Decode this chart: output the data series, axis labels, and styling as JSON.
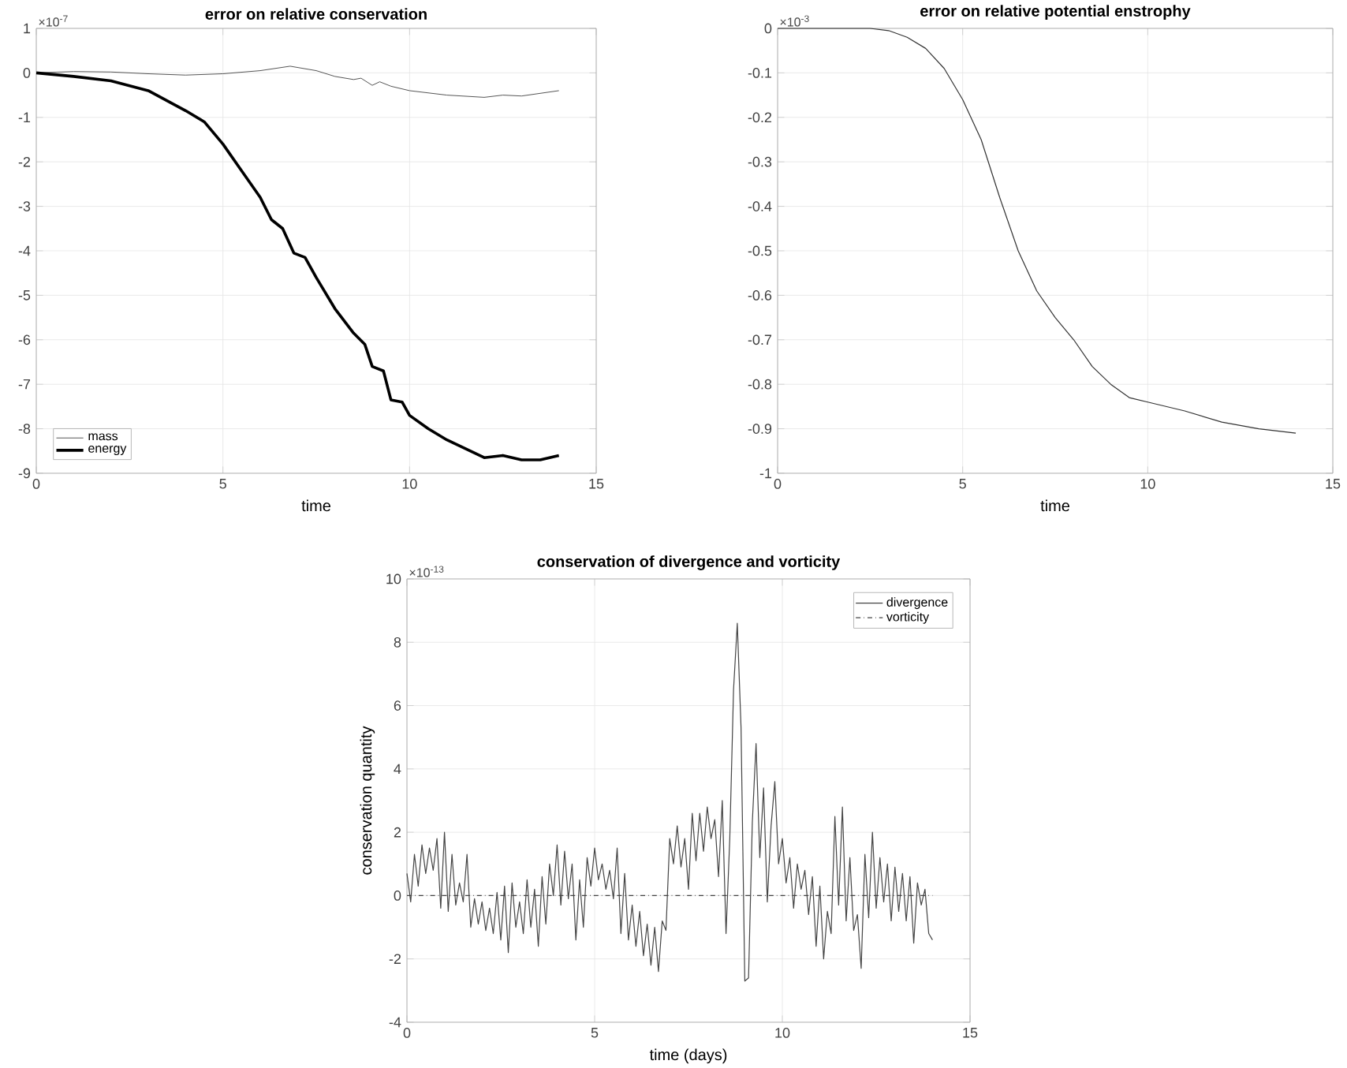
{
  "chart_data": [
    {
      "type": "line",
      "title": "error on relative conservation",
      "xlabel": "time",
      "annotations": [
        "×10$^{-7}$"
      ],
      "xlim": [
        0,
        15
      ],
      "ylim": [
        -9,
        1
      ],
      "xticks": [
        0,
        5,
        10,
        15
      ],
      "yticks": [
        -9,
        -8,
        -7,
        -6,
        -5,
        -4,
        -3,
        -2,
        -1,
        0,
        1
      ],
      "grid": true,
      "legend": "bottom left",
      "series": [
        {
          "name": "mass",
          "color": "#555555",
          "x": [
            0,
            1,
            2,
            3,
            4,
            5,
            6,
            6.8,
            7.5,
            8,
            8.5,
            8.7,
            9,
            9.2,
            9.5,
            10,
            11,
            12,
            12.5,
            13,
            14
          ],
          "values": [
            0,
            0.03,
            0.02,
            -0.02,
            -0.05,
            -0.02,
            0.05,
            0.15,
            0.05,
            -0.08,
            -0.15,
            -0.12,
            -0.28,
            -0.2,
            -0.3,
            -0.4,
            -0.5,
            -0.55,
            -0.5,
            -0.52,
            -0.4
          ]
        },
        {
          "name": "energy",
          "color": "#000000",
          "x": [
            0,
            1,
            2,
            3,
            4,
            4.5,
            5,
            5.5,
            6,
            6.3,
            6.6,
            6.9,
            7.2,
            7.5,
            8,
            8.5,
            8.8,
            9,
            9.3,
            9.5,
            9.8,
            10,
            10.5,
            11,
            11.5,
            12,
            12.5,
            13,
            13.5,
            14
          ],
          "values": [
            0,
            -0.08,
            -0.18,
            -0.4,
            -0.85,
            -1.1,
            -1.6,
            -2.2,
            -2.8,
            -3.3,
            -3.5,
            -4.05,
            -4.15,
            -4.6,
            -5.3,
            -5.85,
            -6.1,
            -6.6,
            -6.7,
            -7.35,
            -7.4,
            -7.7,
            -8.0,
            -8.25,
            -8.45,
            -8.65,
            -8.6,
            -8.7,
            -8.7,
            -8.6
          ]
        }
      ]
    },
    {
      "type": "line",
      "title": "error on relative potential enstrophy",
      "xlabel": "time",
      "annotations": [
        "×10$^{-3}$"
      ],
      "xlim": [
        0,
        15
      ],
      "ylim": [
        -1,
        0
      ],
      "xticks": [
        0,
        5,
        10,
        15
      ],
      "yticks": [
        -1,
        -0.9,
        -0.8,
        -0.7,
        -0.6,
        -0.5,
        -0.4,
        -0.3,
        -0.2,
        -0.1,
        0
      ],
      "grid": true,
      "series": [
        {
          "color": "#333333",
          "x": [
            0,
            2.5,
            3,
            3.5,
            4,
            4.5,
            5,
            5.5,
            6,
            6.5,
            7,
            7.5,
            8,
            8.5,
            9,
            9.5,
            10,
            11,
            12,
            13,
            14
          ],
          "values": [
            0,
            0,
            -0.005,
            -0.02,
            -0.045,
            -0.09,
            -0.16,
            -0.25,
            -0.38,
            -0.5,
            -0.59,
            -0.65,
            -0.7,
            -0.76,
            -0.8,
            -0.83,
            -0.84,
            -0.86,
            -0.885,
            -0.9,
            -0.91
          ]
        }
      ]
    },
    {
      "type": "line",
      "title": "conservation of divergence and vorticity",
      "xlabel": "time (days)",
      "ylabel": "conservation quantity",
      "annotations": [
        "×10$^{-13}$"
      ],
      "xlim": [
        0,
        15
      ],
      "ylim": [
        -4,
        10
      ],
      "xticks": [
        0,
        5,
        10,
        15
      ],
      "yticks": [
        -4,
        -2,
        0,
        2,
        4,
        6,
        8,
        10
      ],
      "grid": true,
      "legend": "top right",
      "series": [
        {
          "name": "divergence",
          "color": "#444444",
          "x": [
            0,
            0.1,
            0.2,
            0.3,
            0.4,
            0.5,
            0.6,
            0.7,
            0.8,
            0.9,
            1.0,
            1.1,
            1.2,
            1.3,
            1.4,
            1.5,
            1.6,
            1.7,
            1.8,
            1.9,
            2.0,
            2.1,
            2.2,
            2.3,
            2.4,
            2.5,
            2.6,
            2.7,
            2.8,
            2.9,
            3.0,
            3.1,
            3.2,
            3.3,
            3.4,
            3.5,
            3.6,
            3.7,
            3.8,
            3.9,
            4.0,
            4.1,
            4.2,
            4.3,
            4.4,
            4.5,
            4.6,
            4.7,
            4.8,
            4.9,
            5.0,
            5.1,
            5.2,
            5.3,
            5.4,
            5.5,
            5.6,
            5.7,
            5.8,
            5.9,
            6.0,
            6.1,
            6.2,
            6.3,
            6.4,
            6.5,
            6.6,
            6.7,
            6.8,
            6.9,
            7.0,
            7.1,
            7.2,
            7.3,
            7.4,
            7.5,
            7.6,
            7.7,
            7.8,
            7.9,
            8.0,
            8.1,
            8.2,
            8.3,
            8.4,
            8.5,
            8.6,
            8.7,
            8.8,
            8.9,
            9.0,
            9.1,
            9.2,
            9.3,
            9.4,
            9.5,
            9.6,
            9.7,
            9.8,
            9.9,
            10.0,
            10.1,
            10.2,
            10.3,
            10.4,
            10.5,
            10.6,
            10.7,
            10.8,
            10.9,
            11.0,
            11.1,
            11.2,
            11.3,
            11.4,
            11.5,
            11.6,
            11.7,
            11.8,
            11.9,
            12.0,
            12.1,
            12.2,
            12.3,
            12.4,
            12.5,
            12.6,
            12.7,
            12.8,
            12.9,
            13.0,
            13.1,
            13.2,
            13.3,
            13.4,
            13.5,
            13.6,
            13.7,
            13.8,
            13.9,
            14.0
          ],
          "values": [
            0.7,
            -0.2,
            1.3,
            0.3,
            1.6,
            0.7,
            1.5,
            0.8,
            1.8,
            -0.4,
            2.0,
            -0.5,
            1.3,
            -0.3,
            0.4,
            -0.2,
            1.3,
            -1.0,
            -0.1,
            -0.9,
            -0.2,
            -1.1,
            -0.4,
            -1.2,
            0.1,
            -1.4,
            0.3,
            -1.8,
            0.4,
            -1.0,
            -0.2,
            -1.2,
            0.5,
            -1.0,
            0.2,
            -1.6,
            0.6,
            -0.9,
            1.0,
            0.0,
            1.6,
            -0.3,
            1.4,
            -0.1,
            1.0,
            -1.4,
            0.5,
            -1.0,
            1.2,
            0.3,
            1.5,
            0.5,
            1.0,
            0.2,
            0.8,
            -0.1,
            1.5,
            -1.2,
            0.7,
            -1.4,
            -0.3,
            -1.6,
            -0.5,
            -1.9,
            -0.9,
            -2.2,
            -1.0,
            -2.4,
            -0.8,
            -1.1,
            1.8,
            1.0,
            2.2,
            0.9,
            1.8,
            0.2,
            2.6,
            1.1,
            2.6,
            1.4,
            2.8,
            1.8,
            2.4,
            0.6,
            3.0,
            -1.2,
            1.8,
            6.5,
            8.6,
            5.3,
            -2.7,
            -2.6,
            2.3,
            4.8,
            1.2,
            3.4,
            -0.2,
            2.2,
            3.6,
            1.0,
            1.8,
            0.4,
            1.2,
            -0.4,
            1.0,
            0.2,
            0.8,
            -0.6,
            0.6,
            -1.6,
            0.3,
            -2.0,
            -0.5,
            -1.2,
            2.5,
            -0.3,
            2.8,
            -0.8,
            1.2,
            -1.1,
            -0.6,
            -2.3,
            1.3,
            -0.7,
            2.0,
            -0.4,
            1.2,
            -0.2,
            1.0,
            -0.8,
            0.9,
            -0.5,
            0.7,
            -0.8,
            0.6,
            -1.5,
            0.4,
            -0.3,
            0.2,
            -1.2,
            -1.4
          ]
        },
        {
          "name": "vorticity",
          "color": "#444444",
          "line_style": "dashed",
          "x": [
            0,
            14
          ],
          "values": [
            0,
            0
          ]
        }
      ]
    }
  ]
}
